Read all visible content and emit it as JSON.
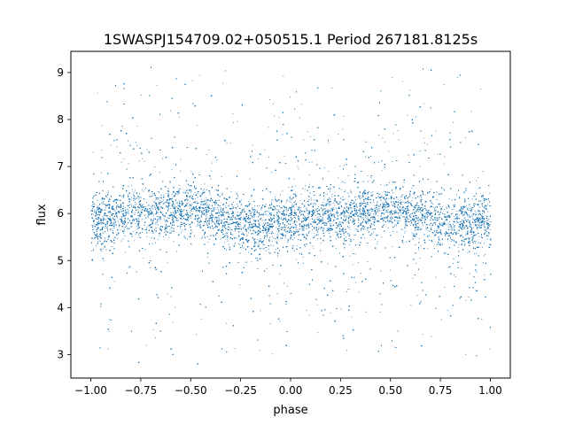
{
  "chart_data": {
    "type": "scatter",
    "title": "1SWASPJ154709.02+050515.1 Period 267181.8125s",
    "xlabel": "phase",
    "ylabel": "flux",
    "xlim": [
      -1.1,
      1.1
    ],
    "ylim": [
      2.5,
      9.45
    ],
    "x_ticks": [
      -1.0,
      -0.75,
      -0.5,
      -0.25,
      0.0,
      0.25,
      0.5,
      0.75,
      1.0
    ],
    "x_tick_labels": [
      "−1.00",
      "−0.75",
      "−0.50",
      "−0.25",
      "0.00",
      "0.25",
      "0.50",
      "0.75",
      "1.00"
    ],
    "y_ticks": [
      3,
      4,
      5,
      6,
      7,
      8,
      9
    ],
    "y_tick_labels": [
      "3",
      "4",
      "5",
      "6",
      "7",
      "8",
      "9"
    ],
    "grid": false,
    "legend": "none",
    "color": "#1f77b4",
    "series": [
      {
        "x_range": [
          -1.0,
          1.0
        ],
        "y_range": [
          2.8,
          9.15
        ],
        "point_count_estimate": 30000,
        "median_flux": [
          [
            -1.0,
            5.85
          ],
          [
            -0.9,
            5.95
          ],
          [
            -0.75,
            6.05
          ],
          [
            -0.6,
            6.05
          ],
          [
            -0.5,
            6.1
          ],
          [
            -0.4,
            6.0
          ],
          [
            -0.25,
            5.8
          ],
          [
            -0.15,
            5.75
          ],
          [
            0.0,
            5.85
          ],
          [
            0.1,
            5.9
          ],
          [
            0.25,
            6.0
          ],
          [
            0.4,
            6.05
          ],
          [
            0.5,
            6.1
          ],
          [
            0.6,
            6.0
          ],
          [
            0.75,
            5.85
          ],
          [
            0.9,
            5.75
          ],
          [
            1.0,
            5.8
          ]
        ],
        "core_spread": 0.5
      }
    ]
  }
}
